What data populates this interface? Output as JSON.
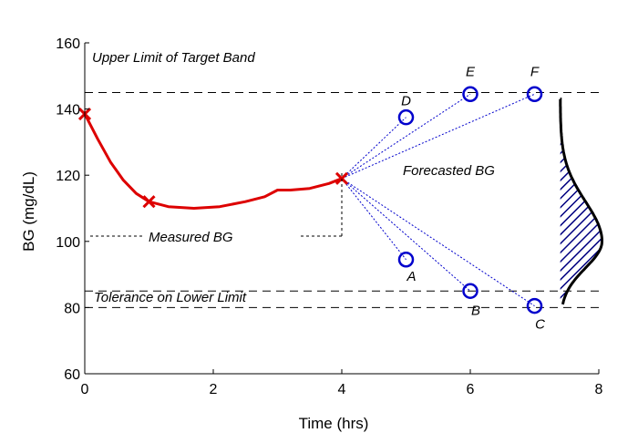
{
  "chart_data": {
    "type": "line",
    "xlabel": "Time (hrs)",
    "ylabel": "BG (mg/dL)",
    "xlim": [
      0,
      8
    ],
    "ylim": [
      60,
      160
    ],
    "x_ticks": [
      "0",
      "2",
      "4",
      "6",
      "8"
    ],
    "y_ticks": [
      "60",
      "80",
      "100",
      "120",
      "140",
      "160"
    ],
    "grid": false,
    "legend": "none",
    "colors": {
      "measured": "#dd0000",
      "forecast": "#0000cc",
      "limits": "#000000",
      "pdf_hatch": "#000080"
    },
    "limit_lines": [
      {
        "label": "Upper Limit of Target Band",
        "y": 145
      },
      {
        "label": "Tolerance on Lower Limit",
        "y": 85
      },
      {
        "label": "",
        "y": 80
      }
    ],
    "measured": {
      "label": "Measured BG",
      "markers": [
        {
          "x": 0,
          "y": 138.5
        },
        {
          "x": 1,
          "y": 112
        },
        {
          "x": 4,
          "y": 119
        }
      ],
      "curve": [
        {
          "x": 0,
          "y": 138.5
        },
        {
          "x": 0.2,
          "y": 131
        },
        {
          "x": 0.4,
          "y": 124
        },
        {
          "x": 0.6,
          "y": 118.5
        },
        {
          "x": 0.8,
          "y": 114.5
        },
        {
          "x": 1,
          "y": 112
        },
        {
          "x": 1.3,
          "y": 110.5
        },
        {
          "x": 1.7,
          "y": 110
        },
        {
          "x": 2.1,
          "y": 110.5
        },
        {
          "x": 2.5,
          "y": 112
        },
        {
          "x": 2.8,
          "y": 113.5
        },
        {
          "x": 3.0,
          "y": 115.5
        },
        {
          "x": 3.2,
          "y": 115.5
        },
        {
          "x": 3.5,
          "y": 116
        },
        {
          "x": 3.8,
          "y": 117.5
        },
        {
          "x": 4,
          "y": 119
        }
      ]
    },
    "forecast": {
      "label": "Forecasted BG",
      "origin": {
        "x": 4,
        "y": 119
      },
      "points": [
        {
          "label": "D",
          "x": 5,
          "y": 137.5
        },
        {
          "label": "E",
          "x": 6,
          "y": 144.5
        },
        {
          "label": "F",
          "x": 7,
          "y": 144.5
        },
        {
          "label": "A",
          "x": 5,
          "y": 94.5
        },
        {
          "label": "B",
          "x": 6,
          "y": 85
        },
        {
          "label": "C",
          "x": 7,
          "y": 80.5
        }
      ]
    },
    "distribution": {
      "base_x": 7.4,
      "y_from": 81,
      "y_to": 143,
      "mode_y": 100,
      "max_width": 0.65
    }
  }
}
